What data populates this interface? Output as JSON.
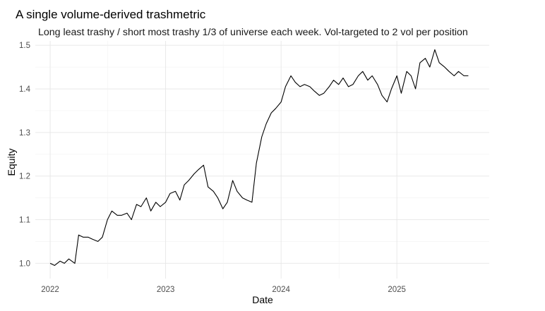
{
  "chart_data": {
    "type": "line",
    "title": "A single volume-derived trashmetric",
    "subtitle": "Long least trashy / short most trashy 1/3 of universe each week. Vol-targeted to 2 vol per position",
    "xlabel": "Date",
    "ylabel": "Equity",
    "x_ticks": [
      "2022",
      "2023",
      "2024",
      "2025"
    ],
    "y_ticks": [
      "1.0",
      "1.1",
      "1.2",
      "1.3",
      "1.4",
      "1.5"
    ],
    "xlim": [
      "2021-11-15",
      "2025-10-20"
    ],
    "ylim": [
      0.965,
      1.51
    ],
    "grid": true,
    "legend": "none",
    "line_color": "#000000",
    "series": [
      {
        "x": [
          "2022-01-01",
          "2022-01-15",
          "2022-02-01",
          "2022-02-15",
          "2022-03-01",
          "2022-03-20",
          "2022-04-01",
          "2022-04-15",
          "2022-05-01",
          "2022-05-15",
          "2022-06-01",
          "2022-06-15",
          "2022-07-01",
          "2022-07-15",
          "2022-08-01",
          "2022-08-15",
          "2022-09-01",
          "2022-09-15",
          "2022-10-01",
          "2022-10-15",
          "2022-11-01",
          "2022-11-15",
          "2022-12-01",
          "2022-12-15",
          "2023-01-01",
          "2023-01-15",
          "2023-02-01",
          "2023-02-15",
          "2023-03-01",
          "2023-03-15",
          "2023-04-01",
          "2023-04-15",
          "2023-05-01",
          "2023-05-15",
          "2023-06-01",
          "2023-06-15",
          "2023-07-01",
          "2023-07-15",
          "2023-08-01",
          "2023-08-15",
          "2023-09-01",
          "2023-09-15",
          "2023-10-01",
          "2023-10-15",
          "2023-11-01",
          "2023-11-15",
          "2023-12-01",
          "2023-12-15",
          "2024-01-01",
          "2024-01-15",
          "2024-02-01",
          "2024-02-15",
          "2024-03-01",
          "2024-03-15",
          "2024-04-01",
          "2024-04-15",
          "2024-05-01",
          "2024-05-15",
          "2024-06-01",
          "2024-06-15",
          "2024-07-01",
          "2024-07-15",
          "2024-08-01",
          "2024-08-15",
          "2024-09-01",
          "2024-09-15",
          "2024-10-01",
          "2024-10-15",
          "2024-11-01",
          "2024-11-15",
          "2024-12-01",
          "2024-12-15",
          "2025-01-01",
          "2025-01-15",
          "2025-02-01",
          "2025-02-15",
          "2025-03-01",
          "2025-03-15",
          "2025-04-01",
          "2025-04-15",
          "2025-05-01",
          "2025-05-15",
          "2025-06-01",
          "2025-06-15",
          "2025-07-01",
          "2025-07-15",
          "2025-08-01",
          "2025-08-15"
        ],
        "y": [
          1.0,
          0.995,
          1.005,
          1.0,
          1.01,
          1.0,
          1.065,
          1.06,
          1.06,
          1.055,
          1.05,
          1.06,
          1.1,
          1.12,
          1.11,
          1.11,
          1.115,
          1.1,
          1.135,
          1.13,
          1.15,
          1.12,
          1.14,
          1.13,
          1.14,
          1.16,
          1.165,
          1.145,
          1.18,
          1.19,
          1.205,
          1.215,
          1.225,
          1.175,
          1.165,
          1.15,
          1.125,
          1.14,
          1.19,
          1.165,
          1.15,
          1.145,
          1.14,
          1.23,
          1.29,
          1.32,
          1.345,
          1.355,
          1.37,
          1.405,
          1.43,
          1.415,
          1.405,
          1.41,
          1.405,
          1.395,
          1.385,
          1.39,
          1.405,
          1.42,
          1.41,
          1.425,
          1.405,
          1.41,
          1.43,
          1.44,
          1.42,
          1.43,
          1.41,
          1.385,
          1.37,
          1.4,
          1.43,
          1.39,
          1.44,
          1.43,
          1.4,
          1.46,
          1.47,
          1.45,
          1.49,
          1.46,
          1.45,
          1.44,
          1.43,
          1.44,
          1.43,
          1.43
        ]
      }
    ]
  }
}
